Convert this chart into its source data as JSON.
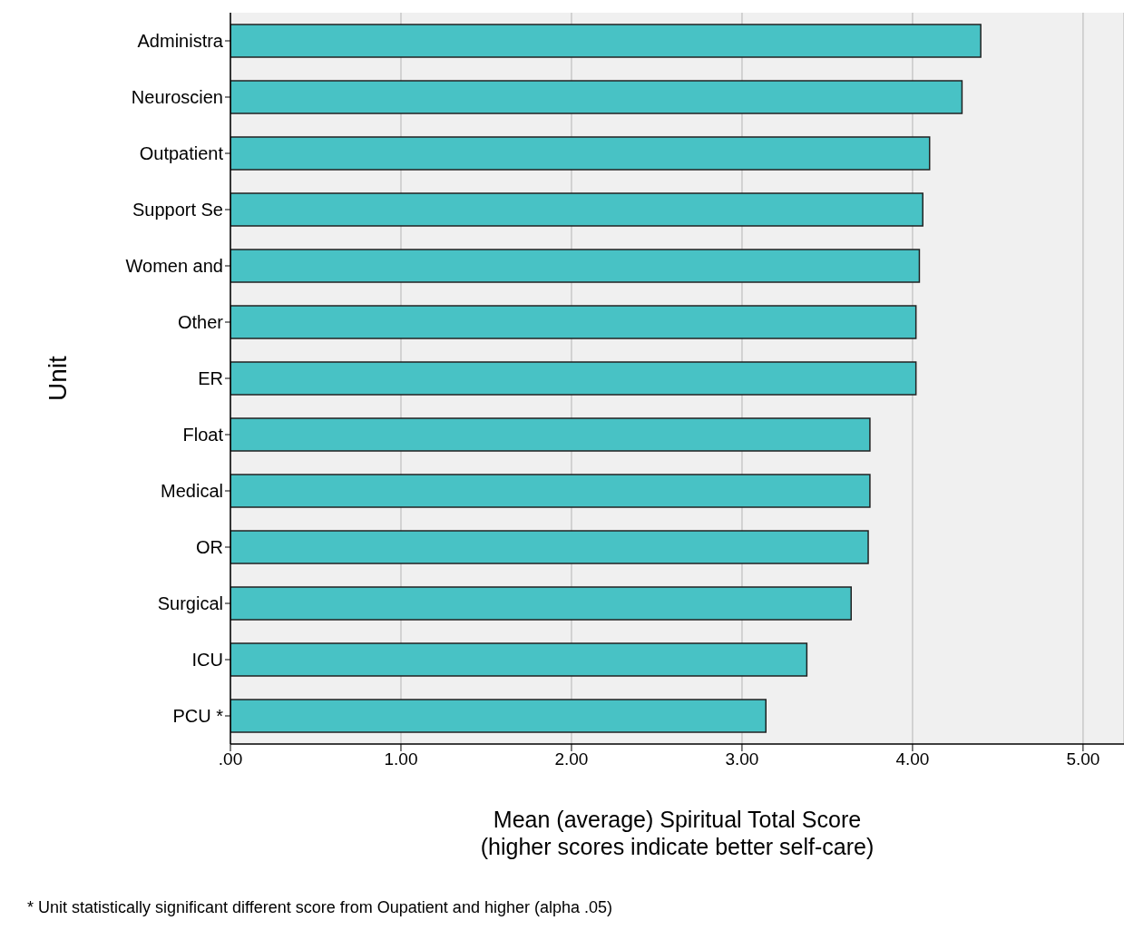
{
  "chart_data": {
    "type": "bar",
    "orientation": "horizontal",
    "ylabel": "Unit",
    "xlabel": "Mean (average) Spiritual Total Score\n(higher scores indicate better self-care)",
    "categories": [
      "Administra",
      "Neuroscien",
      "Outpatient",
      "Support Se",
      "Women and",
      "Other",
      "ER",
      "Float",
      "Medical",
      "OR",
      "Surgical",
      "ICU",
      "PCU *"
    ],
    "values": [
      4.4,
      4.29,
      4.1,
      4.06,
      4.04,
      4.02,
      4.02,
      3.75,
      3.75,
      3.74,
      3.64,
      3.38,
      3.14
    ],
    "color": "#48c2c5",
    "xlim": [
      0,
      5.24
    ],
    "xticks": [
      {
        "value": 0,
        "label": ".00"
      },
      {
        "value": 1,
        "label": "1.00"
      },
      {
        "value": 2,
        "label": "2.00"
      },
      {
        "value": 3,
        "label": "3.00"
      },
      {
        "value": 4,
        "label": "4.00"
      },
      {
        "value": 5,
        "label": "5.00"
      }
    ],
    "grid": "x",
    "legend": false,
    "annotations": [
      "* Unit statistically significant different score from Oupatient and higher (alpha .05)"
    ]
  }
}
